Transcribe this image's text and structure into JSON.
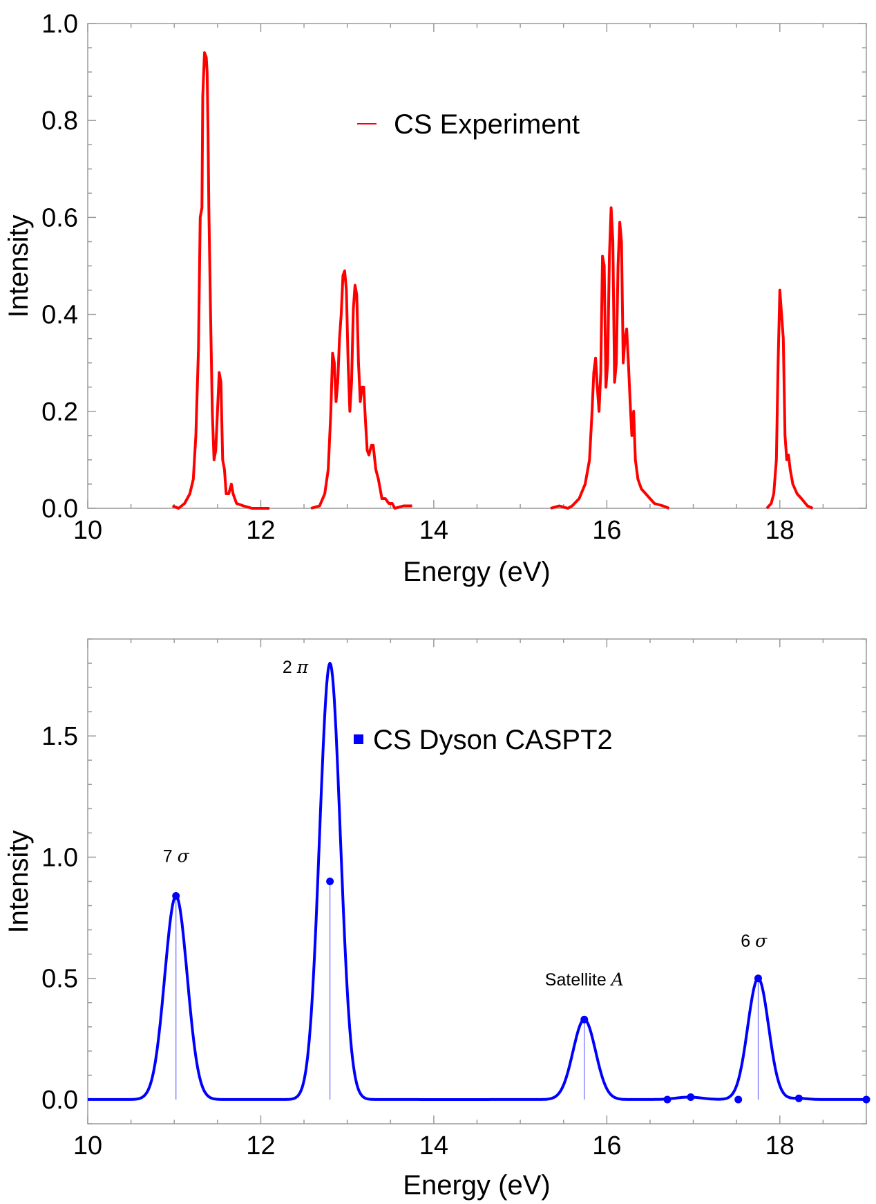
{
  "chart_data": [
    {
      "type": "line",
      "title": "",
      "xlabel": "Energy (eV)",
      "ylabel": "Intensity",
      "xlim": [
        10,
        19
      ],
      "ylim": [
        0,
        1.0
      ],
      "xticks": [
        10,
        12,
        14,
        16,
        18
      ],
      "xtick_labels": [
        "10",
        "12",
        "14",
        "16",
        "18"
      ],
      "yticks": [
        0.0,
        0.2,
        0.4,
        0.6,
        0.8,
        1.0
      ],
      "ytick_labels": [
        "0.0",
        "0.2",
        "0.4",
        "0.6",
        "0.8",
        "1.0"
      ],
      "legend": "top-center",
      "series": [
        {
          "name": "CS Experiment",
          "color": "#ff0000",
          "segments": [
            [
              [
                10.98,
                0.005
              ],
              [
                11.05,
                0.0
              ],
              [
                11.12,
                0.01
              ],
              [
                11.18,
                0.03
              ],
              [
                11.22,
                0.06
              ],
              [
                11.25,
                0.15
              ],
              [
                11.28,
                0.33
              ],
              [
                11.3,
                0.6
              ],
              [
                11.32,
                0.62
              ],
              [
                11.33,
                0.85
              ],
              [
                11.35,
                0.94
              ],
              [
                11.37,
                0.93
              ],
              [
                11.38,
                0.9
              ],
              [
                11.39,
                0.78
              ],
              [
                11.4,
                0.62
              ],
              [
                11.42,
                0.4
              ],
              [
                11.44,
                0.2
              ],
              [
                11.46,
                0.1
              ],
              [
                11.48,
                0.12
              ],
              [
                11.5,
                0.2
              ],
              [
                11.52,
                0.28
              ],
              [
                11.54,
                0.26
              ],
              [
                11.56,
                0.1
              ],
              [
                11.58,
                0.08
              ],
              [
                11.6,
                0.03
              ],
              [
                11.63,
                0.03
              ],
              [
                11.66,
                0.05
              ],
              [
                11.68,
                0.03
              ],
              [
                11.72,
                0.01
              ],
              [
                11.8,
                0.005
              ],
              [
                11.9,
                0.0
              ],
              [
                12.1,
                0.0
              ]
            ],
            [
              [
                12.58,
                0.0
              ],
              [
                12.68,
                0.005
              ],
              [
                12.74,
                0.03
              ],
              [
                12.78,
                0.08
              ],
              [
                12.81,
                0.2
              ],
              [
                12.83,
                0.32
              ],
              [
                12.85,
                0.3
              ],
              [
                12.87,
                0.22
              ],
              [
                12.89,
                0.26
              ],
              [
                12.91,
                0.35
              ],
              [
                12.93,
                0.4
              ],
              [
                12.95,
                0.48
              ],
              [
                12.97,
                0.49
              ],
              [
                12.99,
                0.45
              ],
              [
                13.01,
                0.3
              ],
              [
                13.03,
                0.2
              ],
              [
                13.05,
                0.26
              ],
              [
                13.07,
                0.41
              ],
              [
                13.09,
                0.46
              ],
              [
                13.11,
                0.44
              ],
              [
                13.13,
                0.3
              ],
              [
                13.15,
                0.22
              ],
              [
                13.17,
                0.25
              ],
              [
                13.19,
                0.25
              ],
              [
                13.21,
                0.18
              ],
              [
                13.23,
                0.12
              ],
              [
                13.25,
                0.11
              ],
              [
                13.28,
                0.13
              ],
              [
                13.3,
                0.13
              ],
              [
                13.33,
                0.08
              ],
              [
                13.36,
                0.06
              ],
              [
                13.4,
                0.02
              ],
              [
                13.44,
                0.02
              ],
              [
                13.48,
                0.01
              ],
              [
                13.52,
                0.01
              ],
              [
                13.55,
                0.0
              ],
              [
                13.65,
                0.005
              ],
              [
                13.75,
                0.005
              ]
            ],
            [
              [
                15.35,
                0.0
              ],
              [
                15.45,
                0.005
              ],
              [
                15.55,
                0.0
              ],
              [
                15.6,
                0.005
              ],
              [
                15.68,
                0.02
              ],
              [
                15.75,
                0.05
              ],
              [
                15.8,
                0.1
              ],
              [
                15.83,
                0.2
              ],
              [
                15.85,
                0.28
              ],
              [
                15.87,
                0.31
              ],
              [
                15.89,
                0.25
              ],
              [
                15.91,
                0.2
              ],
              [
                15.93,
                0.28
              ],
              [
                15.95,
                0.52
              ],
              [
                15.97,
                0.5
              ],
              [
                15.99,
                0.25
              ],
              [
                16.01,
                0.3
              ],
              [
                16.03,
                0.52
              ],
              [
                16.05,
                0.62
              ],
              [
                16.07,
                0.55
              ],
              [
                16.09,
                0.26
              ],
              [
                16.11,
                0.3
              ],
              [
                16.13,
                0.5
              ],
              [
                16.15,
                0.59
              ],
              [
                16.17,
                0.55
              ],
              [
                16.19,
                0.3
              ],
              [
                16.21,
                0.35
              ],
              [
                16.23,
                0.37
              ],
              [
                16.25,
                0.3
              ],
              [
                16.27,
                0.22
              ],
              [
                16.29,
                0.15
              ],
              [
                16.31,
                0.2
              ],
              [
                16.33,
                0.1
              ],
              [
                16.36,
                0.06
              ],
              [
                16.4,
                0.04
              ],
              [
                16.45,
                0.03
              ],
              [
                16.55,
                0.01
              ],
              [
                16.65,
                0.005
              ],
              [
                16.72,
                0.0
              ]
            ],
            [
              [
                17.85,
                0.0
              ],
              [
                17.9,
                0.01
              ],
              [
                17.93,
                0.03
              ],
              [
                17.96,
                0.1
              ],
              [
                17.98,
                0.3
              ],
              [
                18.0,
                0.45
              ],
              [
                18.02,
                0.4
              ],
              [
                18.04,
                0.35
              ],
              [
                18.06,
                0.15
              ],
              [
                18.08,
                0.1
              ],
              [
                18.1,
                0.11
              ],
              [
                18.12,
                0.08
              ],
              [
                18.15,
                0.05
              ],
              [
                18.2,
                0.03
              ],
              [
                18.25,
                0.02
              ],
              [
                18.32,
                0.005
              ],
              [
                18.38,
                0.0
              ]
            ]
          ]
        }
      ]
    },
    {
      "type": "line",
      "title": "",
      "xlabel": "Energy (eV)",
      "ylabel": "Intensity",
      "xlim": [
        10,
        19
      ],
      "ylim": [
        -0.1,
        1.9
      ],
      "xticks": [
        10,
        12,
        14,
        16,
        18
      ],
      "xtick_labels": [
        "10",
        "12",
        "14",
        "16",
        "18"
      ],
      "yticks": [
        0.0,
        0.5,
        1.0,
        1.5
      ],
      "ytick_labels": [
        "0.0",
        "0.5",
        "1.0",
        "1.5"
      ],
      "legend": "top-center",
      "series": [
        {
          "name": "CS Dyson CASPT2",
          "color": "#0000ff",
          "baseline": 0.0,
          "peaks": [
            {
              "center": 11.02,
              "height": 0.84,
              "sigma": 0.13
            },
            {
              "center": 12.8,
              "height": 1.8,
              "sigma": 0.12
            },
            {
              "center": 15.74,
              "height": 0.33,
              "sigma": 0.13
            },
            {
              "center": 16.95,
              "height": 0.01,
              "sigma": 0.15
            },
            {
              "center": 17.75,
              "height": 0.5,
              "sigma": 0.12
            },
            {
              "center": 18.22,
              "height": 0.005,
              "sigma": 0.1
            }
          ],
          "sticks": [
            {
              "x": 11.02,
              "y": 0.84
            },
            {
              "x": 12.8,
              "y": 0.9
            },
            {
              "x": 15.74,
              "y": 0.33
            },
            {
              "x": 16.7,
              "y": 0.0
            },
            {
              "x": 16.97,
              "y": 0.01
            },
            {
              "x": 17.52,
              "y": 0.0
            },
            {
              "x": 17.75,
              "y": 0.5
            },
            {
              "x": 18.22,
              "y": 0.005
            },
            {
              "x": 19.0,
              "y": 0.0
            }
          ]
        }
      ],
      "annotations": [
        {
          "label": "7",
          "symbol": "σ",
          "x": 11.02,
          "y": 0.98
        },
        {
          "label": "2",
          "symbol": "π",
          "x": 12.4,
          "y": 1.76
        },
        {
          "label": "Satellite",
          "symbol": "A",
          "x": 15.74,
          "y": 0.47
        },
        {
          "label": "6",
          "symbol": "σ",
          "x": 17.7,
          "y": 0.63
        }
      ]
    }
  ]
}
